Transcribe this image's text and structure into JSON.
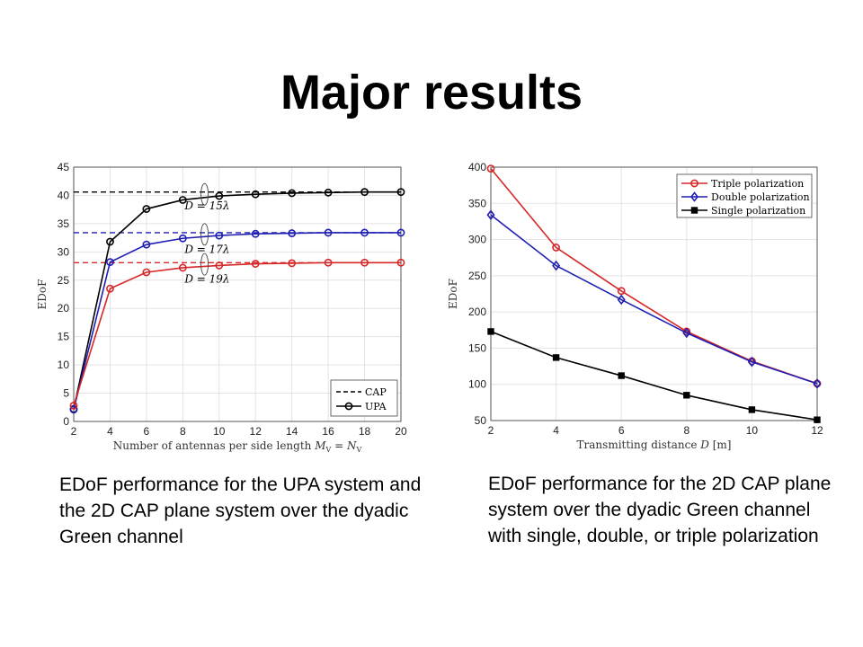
{
  "title": "Major results",
  "captions": {
    "left": "EDoF performance for the UPA system and the 2D CAP plane system over the dyadic Green channel",
    "right": "EDoF performance for the 2D CAP plane system over the dyadic Green channel with single, double, or triple polarization"
  },
  "colors": {
    "red": "#d62728",
    "blue": "#1f1fb4",
    "black": "#000000"
  },
  "chart_data": [
    {
      "type": "line",
      "xlabel": "Number of antennas per side length M_V = N_V",
      "ylabel": "EDoF",
      "xlim": [
        2,
        20
      ],
      "ylim": [
        0,
        45
      ],
      "xticks": [
        2,
        4,
        6,
        8,
        10,
        12,
        14,
        16,
        18,
        20
      ],
      "yticks": [
        0,
        5,
        10,
        15,
        20,
        25,
        30,
        35,
        40,
        45
      ],
      "grid": true,
      "legend": {
        "position": "bottom-right",
        "entries": [
          "CAP",
          "UPA"
        ]
      },
      "x": [
        2,
        4,
        6,
        8,
        10,
        12,
        14,
        16,
        18,
        20
      ],
      "series": [
        {
          "label": "D = 15λ",
          "color": "#000000",
          "upa": [
            2.2,
            31.8,
            37.6,
            39.2,
            39.9,
            40.2,
            40.4,
            40.5,
            40.6,
            40.6
          ],
          "cap": 40.6
        },
        {
          "label": "D = 17λ",
          "color": "#1f1fb4",
          "upa": [
            2.1,
            28.2,
            31.3,
            32.4,
            32.9,
            33.2,
            33.3,
            33.4,
            33.4,
            33.4
          ],
          "cap": 33.4
        },
        {
          "label": "D = 19λ",
          "color": "#d62728",
          "upa": [
            2.8,
            23.5,
            26.4,
            27.2,
            27.6,
            27.9,
            28.0,
            28.1,
            28.1,
            28.1
          ],
          "cap": 28.1
        }
      ]
    },
    {
      "type": "line",
      "xlabel": "Transmitting distance D [m]",
      "ylabel": "EDoF",
      "xlim": [
        2,
        12
      ],
      "ylim": [
        50,
        400
      ],
      "xticks": [
        2,
        4,
        6,
        8,
        10,
        12
      ],
      "yticks": [
        50,
        100,
        150,
        200,
        250,
        300,
        350,
        400
      ],
      "grid": true,
      "legend": {
        "position": "top-right"
      },
      "x": [
        2,
        4,
        6,
        8,
        10,
        12
      ],
      "series": [
        {
          "name": "Triple polarization",
          "color": "#d62728",
          "marker": "circle",
          "values": [
            398,
            289,
            229,
            173,
            132,
            101
          ]
        },
        {
          "name": "Double polarization",
          "color": "#1f1fb4",
          "marker": "diamond",
          "values": [
            334,
            264,
            217,
            171,
            131,
            101
          ]
        },
        {
          "name": "Single polarization",
          "color": "#000000",
          "marker": "square",
          "values": [
            173,
            137,
            112,
            85,
            65,
            51
          ]
        }
      ]
    }
  ]
}
